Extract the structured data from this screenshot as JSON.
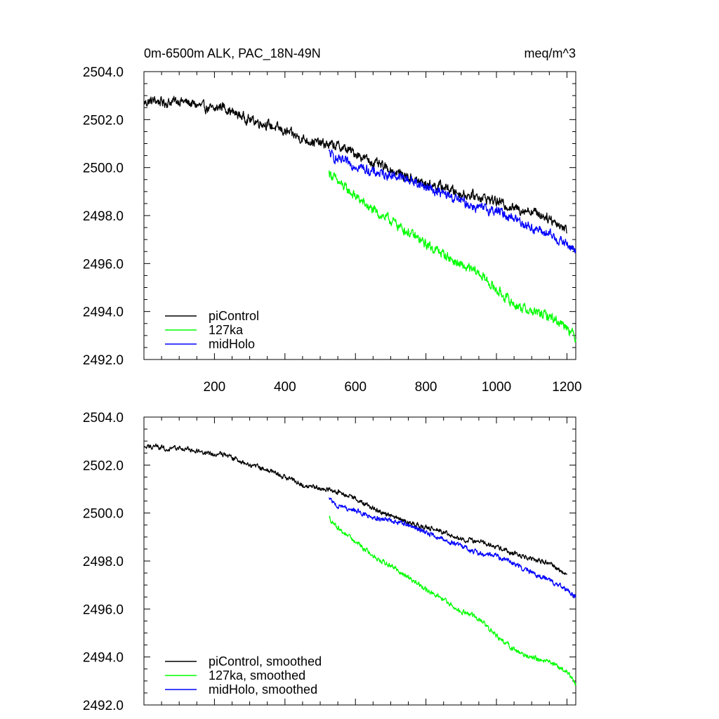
{
  "chart_data": [
    {
      "type": "line",
      "title_left": "0m-6500m ALK, PAC_18N-49N",
      "title_right": "meq/m^3",
      "xlabel": "",
      "ylabel": "",
      "xlim": [
        0,
        1225
      ],
      "ylim": [
        2492.0,
        2504.0
      ],
      "x_ticks": [
        200,
        400,
        600,
        800,
        1000,
        1200
      ],
      "x_tick_labels": [
        "200",
        "400",
        "600",
        "800",
        "1000",
        "1200"
      ],
      "y_ticks": [
        2492.0,
        2494.0,
        2496.0,
        2498.0,
        2500.0,
        2502.0,
        2504.0
      ],
      "y_tick_labels": [
        "2492.0",
        "2494.0",
        "2496.0",
        "2498.0",
        "2500.0",
        "2502.0",
        "2504.0"
      ],
      "legend_position": "bottom-left",
      "series": [
        {
          "name": "piControl",
          "color": "#000000",
          "x": [
            1,
            30,
            60,
            100,
            150,
            200,
            220,
            250,
            300,
            350,
            400,
            450,
            500,
            550,
            600,
            650,
            700,
            750,
            800,
            850,
            900,
            950,
            1000,
            1050,
            1100,
            1150,
            1200
          ],
          "y": [
            2502.7,
            2502.8,
            2502.7,
            2502.8,
            2502.6,
            2502.4,
            2502.6,
            2502.3,
            2502.0,
            2501.8,
            2501.5,
            2501.2,
            2501.0,
            2500.9,
            2500.6,
            2500.2,
            2499.9,
            2499.6,
            2499.3,
            2499.2,
            2498.9,
            2498.8,
            2498.6,
            2498.3,
            2498.2,
            2497.9,
            2497.4
          ]
        },
        {
          "name": "127ka",
          "color": "#00ff00",
          "x": [
            525,
            550,
            600,
            650,
            700,
            750,
            800,
            850,
            900,
            950,
            1000,
            1050,
            1100,
            1150,
            1200,
            1225
          ],
          "y": [
            2499.8,
            2499.4,
            2498.8,
            2498.2,
            2497.8,
            2497.3,
            2496.8,
            2496.4,
            2495.9,
            2495.6,
            2494.9,
            2494.3,
            2494.0,
            2493.8,
            2493.4,
            2492.9
          ]
        },
        {
          "name": "midHolo",
          "color": "#0000ff",
          "x": [
            525,
            550,
            600,
            650,
            700,
            750,
            800,
            850,
            900,
            950,
            1000,
            1050,
            1100,
            1150,
            1200,
            1225
          ],
          "y": [
            2500.6,
            2500.3,
            2500.1,
            2499.8,
            2499.7,
            2499.5,
            2499.2,
            2498.9,
            2498.6,
            2498.3,
            2498.2,
            2497.9,
            2497.5,
            2497.2,
            2496.8,
            2496.5
          ]
        }
      ]
    },
    {
      "type": "line",
      "title_left": "",
      "title_right": "",
      "xlabel": "",
      "ylabel": "",
      "xlim": [
        0,
        1225
      ],
      "ylim": [
        2492.0,
        2504.0
      ],
      "x_ticks": [
        200,
        400,
        600,
        800,
        1000,
        1200
      ],
      "x_tick_labels": [],
      "y_ticks": [
        2492.0,
        2494.0,
        2496.0,
        2498.0,
        2500.0,
        2502.0,
        2504.0
      ],
      "y_tick_labels": [
        "2492.0",
        "2494.0",
        "2496.0",
        "2498.0",
        "2500.0",
        "2502.0",
        "2504.0"
      ],
      "legend_position": "bottom-left",
      "series": [
        {
          "name": "piControl, smoothed",
          "color": "#000000",
          "x": [
            1,
            30,
            60,
            100,
            150,
            200,
            220,
            250,
            300,
            350,
            400,
            450,
            500,
            550,
            600,
            650,
            700,
            750,
            800,
            850,
            900,
            950,
            1000,
            1050,
            1100,
            1150,
            1200
          ],
          "y": [
            2502.7,
            2502.8,
            2502.7,
            2502.7,
            2502.6,
            2502.4,
            2502.5,
            2502.3,
            2502.0,
            2501.8,
            2501.5,
            2501.2,
            2501.0,
            2500.9,
            2500.6,
            2500.2,
            2499.9,
            2499.6,
            2499.4,
            2499.2,
            2498.9,
            2498.8,
            2498.6,
            2498.3,
            2498.1,
            2497.9,
            2497.4
          ]
        },
        {
          "name": "127ka, smoothed",
          "color": "#00ff00",
          "x": [
            525,
            550,
            600,
            650,
            700,
            750,
            800,
            850,
            900,
            950,
            1000,
            1050,
            1100,
            1150,
            1200,
            1225
          ],
          "y": [
            2499.8,
            2499.4,
            2498.8,
            2498.2,
            2497.8,
            2497.3,
            2496.8,
            2496.4,
            2495.9,
            2495.6,
            2494.9,
            2494.3,
            2494.0,
            2493.8,
            2493.4,
            2492.9
          ]
        },
        {
          "name": "midHolo, smoothed",
          "color": "#0000ff",
          "x": [
            525,
            550,
            600,
            650,
            700,
            750,
            800,
            850,
            900,
            950,
            1000,
            1050,
            1100,
            1150,
            1200,
            1225
          ],
          "y": [
            2500.6,
            2500.3,
            2500.1,
            2499.8,
            2499.7,
            2499.5,
            2499.2,
            2498.9,
            2498.6,
            2498.3,
            2498.2,
            2497.9,
            2497.5,
            2497.2,
            2496.8,
            2496.5
          ]
        }
      ]
    }
  ]
}
